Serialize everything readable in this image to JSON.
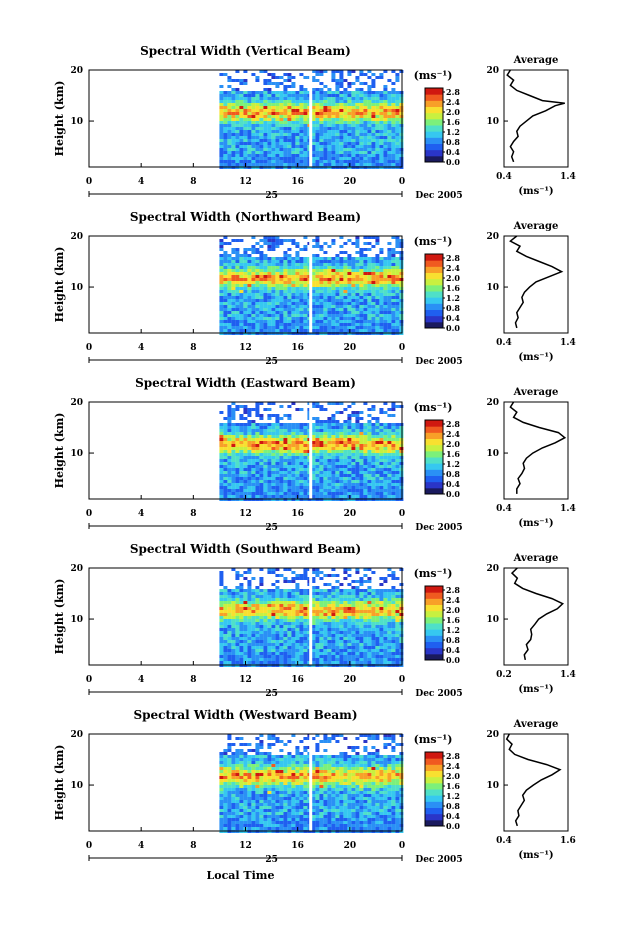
{
  "figure": {
    "xlabel": "Local Time",
    "date_label": "Dec 2005",
    "day_label": "25",
    "colorbar_unit": "(ms⁻¹)",
    "average_title": "Average",
    "average_xunit": "(ms⁻¹)",
    "ylabel": "Height (km)"
  },
  "colormap": [
    "#1a1a5e",
    "#2a35c8",
    "#1f5ff0",
    "#2a90f5",
    "#36c8f0",
    "#4fe0c8",
    "#7cf07a",
    "#c8f040",
    "#f8e030",
    "#f8a028",
    "#f05a20",
    "#d01810"
  ],
  "colorbar_ticks": [
    "0.0",
    "0.4",
    "0.8",
    "1.2",
    "1.6",
    "2.0",
    "2.4",
    "2.8"
  ],
  "chart_data": [
    {
      "type": "heatmap",
      "title": "Spectral Width (Vertical Beam)",
      "x_ticks": [
        "0",
        "4",
        "8",
        "12",
        "16",
        "20",
        "0"
      ],
      "xlim_hours": [
        0,
        24
      ],
      "data_start_hour": 10,
      "gap_hour": 17,
      "y_ticks": [
        "20",
        "10"
      ],
      "ylim_km": [
        1,
        20
      ],
      "avg_xticks": [
        "0.4",
        "1.4"
      ],
      "avg_xlim": [
        0.4,
        1.4
      ],
      "avg_profile": [
        [
          0.55,
          2
        ],
        [
          0.52,
          3
        ],
        [
          0.55,
          4
        ],
        [
          0.5,
          5
        ],
        [
          0.55,
          6
        ],
        [
          0.62,
          7
        ],
        [
          0.6,
          8
        ],
        [
          0.65,
          9
        ],
        [
          0.75,
          10
        ],
        [
          0.85,
          11
        ],
        [
          1.05,
          12
        ],
        [
          1.2,
          13
        ],
        [
          1.35,
          13.5
        ],
        [
          1.0,
          14
        ],
        [
          0.8,
          15
        ],
        [
          0.6,
          16
        ],
        [
          0.5,
          17
        ],
        [
          0.55,
          18
        ],
        [
          0.45,
          19
        ],
        [
          0.5,
          20
        ]
      ]
    },
    {
      "type": "heatmap",
      "title": "Spectral Width (Northward Beam)",
      "x_ticks": [
        "0",
        "4",
        "8",
        "12",
        "16",
        "20",
        "0"
      ],
      "xlim_hours": [
        0,
        24
      ],
      "data_start_hour": 10,
      "gap_hour": 17,
      "y_ticks": [
        "20",
        "10"
      ],
      "ylim_km": [
        1,
        20
      ],
      "avg_xticks": [
        "0.4",
        "1.4"
      ],
      "avg_xlim": [
        0.4,
        1.4
      ],
      "avg_profile": [
        [
          0.6,
          2
        ],
        [
          0.58,
          3
        ],
        [
          0.62,
          4
        ],
        [
          0.6,
          5
        ],
        [
          0.65,
          6
        ],
        [
          0.7,
          7
        ],
        [
          0.68,
          8
        ],
        [
          0.72,
          9
        ],
        [
          0.8,
          10
        ],
        [
          0.9,
          11
        ],
        [
          1.1,
          12
        ],
        [
          1.3,
          13
        ],
        [
          1.15,
          14
        ],
        [
          0.95,
          15
        ],
        [
          0.75,
          16
        ],
        [
          0.6,
          17
        ],
        [
          0.65,
          18
        ],
        [
          0.5,
          19
        ],
        [
          0.6,
          20
        ]
      ]
    },
    {
      "type": "heatmap",
      "title": "Spectral Width (Eastward Beam)",
      "x_ticks": [
        "0",
        "4",
        "8",
        "12",
        "16",
        "20",
        "0"
      ],
      "xlim_hours": [
        0,
        24
      ],
      "data_start_hour": 10,
      "gap_hour": 17,
      "y_ticks": [
        "20",
        "10"
      ],
      "ylim_km": [
        1,
        20
      ],
      "avg_xticks": [
        "0.4",
        "1.4"
      ],
      "avg_xlim": [
        0.4,
        1.4
      ],
      "avg_profile": [
        [
          0.6,
          2
        ],
        [
          0.6,
          3
        ],
        [
          0.65,
          4
        ],
        [
          0.62,
          5
        ],
        [
          0.68,
          6
        ],
        [
          0.72,
          7
        ],
        [
          0.7,
          8
        ],
        [
          0.75,
          9
        ],
        [
          0.85,
          10
        ],
        [
          1.0,
          11
        ],
        [
          1.2,
          12
        ],
        [
          1.35,
          13
        ],
        [
          1.25,
          14
        ],
        [
          0.95,
          15
        ],
        [
          0.7,
          16
        ],
        [
          0.55,
          17
        ],
        [
          0.6,
          18
        ],
        [
          0.5,
          19
        ],
        [
          0.55,
          20
        ]
      ]
    },
    {
      "type": "heatmap",
      "title": "Spectral Width (Southward Beam)",
      "x_ticks": [
        "0",
        "4",
        "8",
        "12",
        "16",
        "20",
        "0"
      ],
      "xlim_hours": [
        0,
        24
      ],
      "data_start_hour": 10,
      "gap_hour": 17,
      "y_ticks": [
        "20",
        "10"
      ],
      "ylim_km": [
        1,
        20
      ],
      "avg_xticks": [
        "0.2",
        "1.4"
      ],
      "avg_xlim": [
        0.2,
        1.4
      ],
      "avg_profile": [
        [
          0.6,
          2
        ],
        [
          0.58,
          3
        ],
        [
          0.65,
          4
        ],
        [
          0.62,
          5
        ],
        [
          0.7,
          6
        ],
        [
          0.72,
          7
        ],
        [
          0.7,
          8
        ],
        [
          0.78,
          9
        ],
        [
          0.85,
          10
        ],
        [
          1.0,
          11
        ],
        [
          1.2,
          12
        ],
        [
          1.3,
          13
        ],
        [
          1.1,
          14
        ],
        [
          0.8,
          15
        ],
        [
          0.55,
          16
        ],
        [
          0.4,
          17
        ],
        [
          0.45,
          18
        ],
        [
          0.35,
          19
        ],
        [
          0.45,
          20
        ]
      ]
    },
    {
      "type": "heatmap",
      "title": "Spectral Width (Westward Beam)",
      "x_ticks": [
        "0",
        "4",
        "8",
        "12",
        "16",
        "20",
        "0"
      ],
      "xlim_hours": [
        0,
        24
      ],
      "data_start_hour": 10,
      "gap_hour": 17,
      "y_ticks": [
        "20",
        "10"
      ],
      "ylim_km": [
        1,
        20
      ],
      "avg_xticks": [
        "0.4",
        "1.6"
      ],
      "avg_xlim": [
        0.4,
        1.6
      ],
      "avg_profile": [
        [
          0.65,
          2
        ],
        [
          0.62,
          3
        ],
        [
          0.68,
          4
        ],
        [
          0.66,
          5
        ],
        [
          0.72,
          6
        ],
        [
          0.78,
          7
        ],
        [
          0.75,
          8
        ],
        [
          0.82,
          9
        ],
        [
          0.95,
          10
        ],
        [
          1.1,
          11
        ],
        [
          1.3,
          12
        ],
        [
          1.45,
          13
        ],
        [
          1.2,
          14
        ],
        [
          0.85,
          15
        ],
        [
          0.6,
          16
        ],
        [
          0.5,
          17
        ],
        [
          0.55,
          18
        ],
        [
          0.45,
          19
        ],
        [
          0.5,
          20
        ]
      ]
    }
  ]
}
